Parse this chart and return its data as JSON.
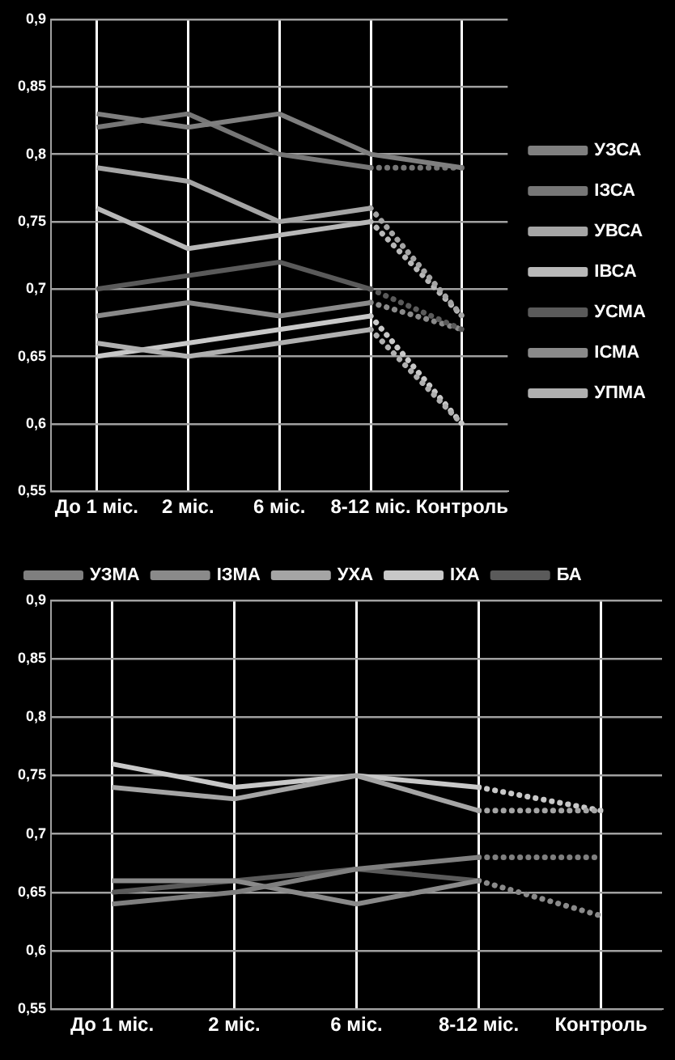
{
  "chart_data": [
    {
      "type": "line",
      "categories": [
        "До 1 міс.",
        "2 міс.",
        "6 міс.",
        "8-12 міс.",
        "Контроль"
      ],
      "ylim": [
        0.55,
        0.9
      ],
      "yticks": [
        {
          "value": 0.55,
          "label": "0,55"
        },
        {
          "value": 0.6,
          "label": "0,6"
        },
        {
          "value": 0.65,
          "label": "0,65"
        },
        {
          "value": 0.7,
          "label": "0,7"
        },
        {
          "value": 0.75,
          "label": "0,75"
        },
        {
          "value": 0.8,
          "label": "0,8"
        },
        {
          "value": 0.85,
          "label": "0,85"
        },
        {
          "value": 0.9,
          "label": "0,9"
        }
      ],
      "grid": true,
      "legend": "right",
      "marker": "none",
      "line_style": "solid",
      "series": [
        {
          "name": "УЗСА",
          "color": "#7f7f7f",
          "values": [
            0.83,
            0.82,
            0.83,
            0.8,
            0.79
          ]
        },
        {
          "name": "ІЗСА",
          "color": "#767676",
          "values": [
            0.82,
            0.83,
            0.8,
            0.79,
            null
          ]
        },
        {
          "name": "УВСА",
          "color": "#a5a5a5",
          "values": [
            0.79,
            0.78,
            0.75,
            0.76,
            null
          ]
        },
        {
          "name": "ІВСА",
          "color": "#b8b8b8",
          "values": [
            0.76,
            0.73,
            0.74,
            0.75,
            null
          ]
        },
        {
          "name": "УСМА",
          "color": "#5a5a5a",
          "values": [
            0.7,
            0.71,
            0.72,
            0.7,
            null
          ]
        },
        {
          "name": "ІСМА",
          "color": "#8a8a8a",
          "values": [
            0.68,
            0.69,
            0.68,
            0.69,
            null
          ]
        },
        {
          "name": "УПМА",
          "color": "#b0b0b0",
          "values": [
            0.66,
            0.65,
            0.66,
            0.67,
            null
          ]
        },
        {
          "color": "#c8c8c8",
          "values": [
            0.65,
            0.66,
            0.67,
            0.68,
            null
          ]
        },
        {
          "type": "line",
          "line_style": "dotted",
          "color": "#767676",
          "values": [
            null,
            null,
            null,
            0.79,
            0.79
          ]
        },
        {
          "type": "line",
          "line_style": "dotted",
          "color": "#a5a5a5",
          "values": [
            null,
            null,
            null,
            0.76,
            0.68
          ]
        },
        {
          "type": "line",
          "line_style": "dotted",
          "color": "#b8b8b8",
          "values": [
            null,
            null,
            null,
            0.75,
            0.68
          ]
        },
        {
          "type": "line",
          "line_style": "dotted",
          "color": "#5a5a5a",
          "values": [
            null,
            null,
            null,
            0.7,
            0.67
          ]
        },
        {
          "type": "line",
          "line_style": "dotted",
          "color": "#8a8a8a",
          "values": [
            null,
            null,
            null,
            0.69,
            0.67
          ]
        },
        {
          "type": "line",
          "line_style": "dotted",
          "color": "#b0b0b0",
          "values": [
            null,
            null,
            null,
            0.67,
            0.6
          ]
        },
        {
          "type": "line",
          "line_style": "dotted",
          "color": "#c8c8c8",
          "values": [
            null,
            null,
            null,
            0.68,
            0.6
          ]
        }
      ]
    },
    {
      "type": "line",
      "categories": [
        "До 1 міс.",
        "2 міс.",
        "6 міс.",
        "8-12 міс.",
        "Контроль"
      ],
      "ylim": [
        0.55,
        0.9
      ],
      "yticks": [
        {
          "value": 0.55,
          "label": "0,55"
        },
        {
          "value": 0.6,
          "label": "0,6"
        },
        {
          "value": 0.65,
          "label": "0,65"
        },
        {
          "value": 0.7,
          "label": "0,7"
        },
        {
          "value": 0.75,
          "label": "0,75"
        },
        {
          "value": 0.8,
          "label": "0,8"
        },
        {
          "value": 0.85,
          "label": "0,85"
        },
        {
          "value": 0.9,
          "label": "0,9"
        }
      ],
      "grid": true,
      "legend": "top",
      "marker": "none",
      "line_style": "solid",
      "series": [
        {
          "name": "УЗМА",
          "color": "#7f7f7f",
          "values": [
            0.64,
            0.65,
            0.67,
            0.68,
            null
          ]
        },
        {
          "name": "ІЗМА",
          "color": "#8a8a8a",
          "values": [
            0.66,
            0.66,
            0.64,
            0.66,
            null
          ]
        },
        {
          "name": "УХА",
          "color": "#a5a5a5",
          "values": [
            0.74,
            0.73,
            0.75,
            0.72,
            null
          ]
        },
        {
          "name": "ІХА",
          "color": "#c8c8c8",
          "values": [
            0.76,
            0.74,
            0.75,
            0.74,
            null
          ]
        },
        {
          "name": "БА",
          "color": "#5a5a5a",
          "values": [
            0.65,
            0.66,
            0.67,
            0.66,
            null
          ]
        },
        {
          "type": "line",
          "line_style": "dotted",
          "color": "#7f7f7f",
          "values": [
            null,
            null,
            null,
            0.68,
            0.68
          ]
        },
        {
          "type": "line",
          "line_style": "dotted",
          "color": "#8a8a8a",
          "values": [
            null,
            null,
            null,
            0.66,
            0.63
          ]
        },
        {
          "type": "line",
          "line_style": "dotted",
          "color": "#a5a5a5",
          "values": [
            null,
            null,
            null,
            0.72,
            0.72
          ]
        },
        {
          "type": "line",
          "line_style": "dotted",
          "color": "#c8c8c8",
          "values": [
            null,
            null,
            null,
            0.74,
            0.72
          ]
        }
      ]
    }
  ]
}
